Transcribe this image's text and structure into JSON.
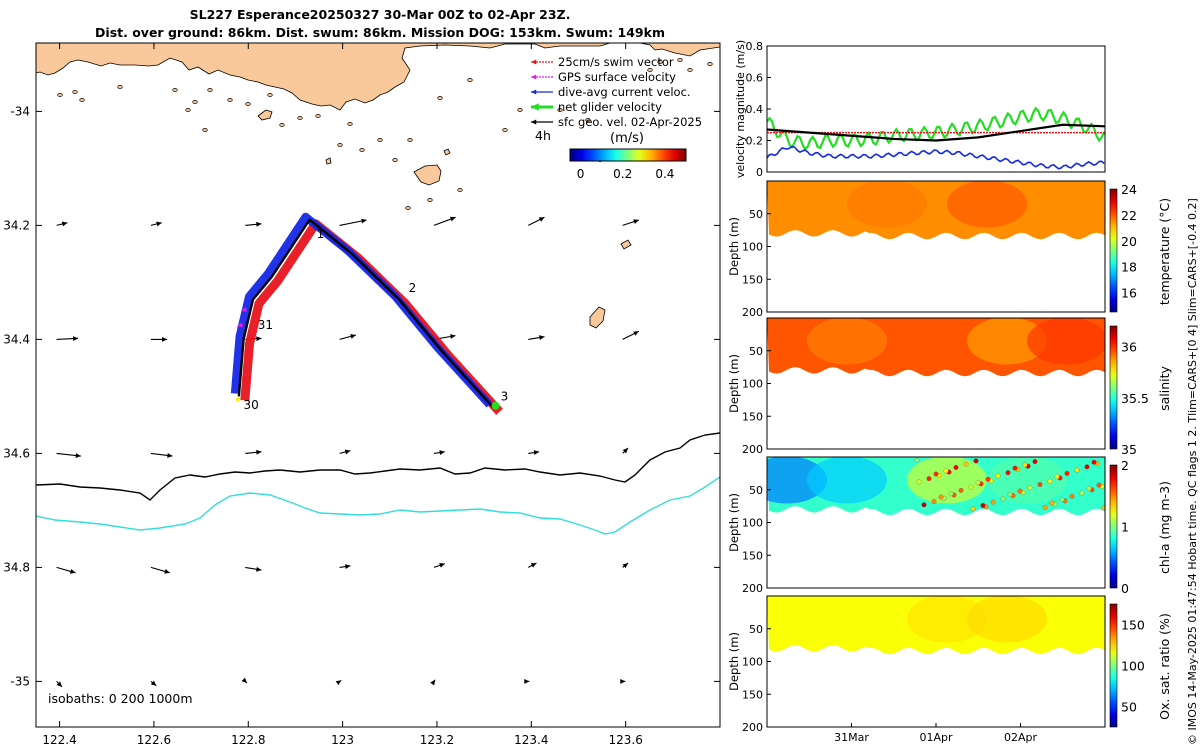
{
  "title_line1": "SL227 Esperance20250327 30-Mar 00Z to 02-Apr 23Z.",
  "title_line2": "Dist. over ground: 86km. Dist. swum: 86km. Mission DOG: 153km. Swum: 149km",
  "side_caption": "© IMOS 14-May-2025 01:47:54 Hobart time. QC flags 1  2. Tlim=CARS+[0 4] Slim=CARS+[-0.4 0.2]",
  "colors": {
    "land": "#f9c89b",
    "swim": "#e8141e",
    "gps": "#e61ee6",
    "current": "#1428e8",
    "net": "#22dd22",
    "geo": "#000000",
    "iso200": "#000000",
    "iso1000": "#33dddd"
  },
  "chart_data": [
    {
      "type": "map",
      "xlim": [
        122.35,
        123.8
      ],
      "ylim": [
        -35.08,
        -33.88
      ],
      "xticks": [
        122.4,
        122.6,
        122.8,
        123,
        123.2,
        123.4,
        123.6
      ],
      "xtick_labels": [
        "122.4",
        "122.6",
        "122.8",
        "123",
        "123.2",
        "123.4",
        "123.6"
      ],
      "yticks": [
        -34,
        -34.2,
        -34.4,
        -34.6,
        -34.8,
        -35
      ],
      "ytick_labels": [
        "-34",
        "34.2",
        "34.4",
        "34.6",
        "34.8",
        "-35"
      ],
      "legend": [
        {
          "label": "25cm/s swim vector",
          "color": "#e8141e",
          "style": "dotted-arrow"
        },
        {
          "label": "GPS surface velocity",
          "color": "#e61ee6",
          "style": "dotted-arrow"
        },
        {
          "label": "dive-avg current veloc.",
          "color": "#1428e8",
          "style": "arrow"
        },
        {
          "label": "net glider velocity",
          "color": "#22dd22",
          "style": "thick-arrow"
        },
        {
          "label": "sfc geo. vel. 02-Apr-2025",
          "color": "#000000",
          "style": "arrow"
        }
      ],
      "legend_position": "top-right",
      "time_step_label": "4h",
      "colorbar": {
        "title": "(m/s)",
        "ticks": [
          0,
          0.2,
          0.4
        ],
        "tick_labels": [
          "0",
          "0.2",
          "0.4"
        ],
        "range": [
          -0.05,
          0.5
        ]
      },
      "isobath_label": "isobaths: 0   200  1000m",
      "track": [
        {
          "lon": 122.78,
          "lat": -34.5
        },
        {
          "lon": 122.79,
          "lat": -34.4
        },
        {
          "lon": 122.81,
          "lat": -34.33
        },
        {
          "lon": 122.85,
          "lat": -34.29
        },
        {
          "lon": 122.93,
          "lat": -34.19
        },
        {
          "lon": 123.02,
          "lat": -34.25
        },
        {
          "lon": 123.12,
          "lat": -34.33
        },
        {
          "lon": 123.21,
          "lat": -34.42
        },
        {
          "lon": 123.32,
          "lat": -34.52
        }
      ],
      "day_labels": [
        {
          "label": "1",
          "lon": 122.945,
          "lat": -34.215
        },
        {
          "label": "2",
          "lon": 123.14,
          "lat": -34.31
        },
        {
          "label": "3",
          "lon": 123.335,
          "lat": -34.5
        },
        {
          "label": "31",
          "lon": 122.82,
          "lat": -34.375
        },
        {
          "label": "30",
          "lon": 122.79,
          "lat": -34.515
        }
      ],
      "geo_vectors": {
        "lons": [
          122.4,
          122.6,
          122.8,
          123.0,
          123.2,
          123.4,
          123.6
        ],
        "lats": [
          -34.2,
          -34.4,
          -34.6,
          -34.8,
          -35.0
        ],
        "u": [
          [
            0.02,
            0.02,
            0.03,
            0.05,
            0.04,
            0.03,
            0.03
          ],
          [
            0.04,
            0.03,
            0.03,
            0.03,
            0.04,
            0.03,
            0.03
          ],
          [
            0.045,
            0.04,
            0.03,
            0.02,
            0.02,
            0.02,
            0.01
          ],
          [
            0.035,
            0.035,
            0.03,
            0.02,
            0.02,
            0.015,
            0.01
          ],
          [
            0.01,
            0.01,
            0.003,
            0.003,
            0.002,
            0.002,
            0.005
          ]
        ],
        "v": [
          [
            0.005,
            0.005,
            0.003,
            0.01,
            0.015,
            0.015,
            0.01
          ],
          [
            0.002,
            0.0,
            0.002,
            0.008,
            0.007,
            0.005,
            0.015
          ],
          [
            -0.005,
            -0.005,
            0.003,
            0.005,
            0.003,
            0.003,
            0.01
          ],
          [
            -0.01,
            -0.01,
            -0.005,
            0.003,
            0.007,
            0.008,
            0.008
          ],
          [
            -0.01,
            -0.008,
            -0.003,
            0.002,
            0.003,
            0.0,
            0.0
          ]
        ]
      }
    },
    {
      "type": "line",
      "ylabel": "velocity magnitude (m/s)",
      "ylim": [
        0,
        0.8
      ],
      "yticks": [
        0,
        0.2,
        0.4,
        0.6,
        0.8
      ],
      "ytick_labels": [
        "0",
        "0.2",
        "0.4",
        "0.6",
        "0.8"
      ],
      "x_range_days": [
        0,
        4
      ],
      "series": [
        {
          "name": "net glider velocity",
          "color": "#22dd22",
          "x": [
            0,
            0.25,
            0.5,
            0.75,
            1.0,
            1.25,
            1.5,
            1.75,
            2.0,
            2.25,
            2.5,
            2.75,
            3.0,
            3.25,
            3.5,
            3.75,
            4.0
          ],
          "values": [
            0.32,
            0.2,
            0.18,
            0.2,
            0.2,
            0.21,
            0.23,
            0.24,
            0.25,
            0.27,
            0.29,
            0.32,
            0.35,
            0.37,
            0.34,
            0.29,
            0.22
          ]
        },
        {
          "name": "25cm/s swim vector",
          "color": "#e8141e",
          "x": [
            0,
            4
          ],
          "values": [
            0.25,
            0.25
          ]
        },
        {
          "name": "dive-avg current veloc.",
          "color": "#1428e8",
          "x": [
            0,
            0.25,
            0.5,
            0.75,
            1.0,
            1.25,
            1.5,
            1.75,
            2.0,
            2.25,
            2.5,
            2.75,
            3.0,
            3.25,
            3.5,
            3.75,
            4.0
          ],
          "values": [
            0.09,
            0.16,
            0.12,
            0.1,
            0.1,
            0.1,
            0.11,
            0.12,
            0.13,
            0.12,
            0.1,
            0.08,
            0.06,
            0.04,
            0.03,
            0.05,
            0.06
          ]
        },
        {
          "name": "sfc geo. vel.",
          "color": "#000000",
          "x": [
            0,
            0.5,
            1.0,
            1.5,
            2.0,
            2.5,
            3.0,
            3.5,
            4.0
          ],
          "values": [
            0.27,
            0.25,
            0.23,
            0.21,
            0.2,
            0.22,
            0.26,
            0.3,
            0.29
          ]
        }
      ]
    },
    {
      "type": "heatmap",
      "variable": "temperature",
      "ylabel": "Depth (m)",
      "colorbar_label": "temperature (°C)",
      "clim": [
        14.5,
        24
      ],
      "colorbar_ticks": [
        16,
        18,
        20,
        22,
        24
      ],
      "ylim": [
        0,
        200
      ],
      "yticks": [
        50,
        100,
        150,
        200
      ],
      "ytick_labels": [
        "50",
        "100",
        "150",
        "200"
      ],
      "max_depth_m": 90,
      "typical_value": 21.5
    },
    {
      "type": "heatmap",
      "variable": "salinity",
      "ylabel": "Depth (m)",
      "colorbar_label": "salinity",
      "clim": [
        35,
        36.2
      ],
      "colorbar_ticks": [
        35,
        35.5,
        36
      ],
      "colorbar_tick_labels": [
        "35",
        "35.5",
        "36"
      ],
      "ylim": [
        0,
        200
      ],
      "yticks": [
        50,
        100,
        150,
        200
      ],
      "ytick_labels": [
        "50",
        "100",
        "150",
        "200"
      ],
      "max_depth_m": 90,
      "typical_value": 35.95
    },
    {
      "type": "heatmap",
      "variable": "chl-a",
      "ylabel": "Depth (m)",
      "colorbar_label": "chl-a (mg m-3)",
      "clim": [
        0,
        2
      ],
      "colorbar_ticks": [
        0,
        1,
        2
      ],
      "ylim": [
        0,
        200
      ],
      "yticks": [
        50,
        100,
        150,
        200
      ],
      "ytick_labels": [
        "50",
        "100",
        "150",
        "200"
      ],
      "max_depth_m": 90,
      "typical_value": 0.85
    },
    {
      "type": "heatmap",
      "variable": "oxygen",
      "ylabel": "Depth (m)",
      "colorbar_label": "Ox. sat. ratio (%)",
      "clim": [
        25,
        175
      ],
      "colorbar_ticks": [
        50,
        100,
        150
      ],
      "ylim": [
        0,
        200
      ],
      "yticks": [
        50,
        100,
        150,
        200
      ],
      "ytick_labels": [
        "50",
        "100",
        "150",
        "200"
      ],
      "x_tick_labels": [
        "31Mar",
        "01Apr",
        "02Apr"
      ],
      "x_tick_days": [
        1,
        2,
        3
      ],
      "max_depth_m": 90,
      "typical_value": 118
    }
  ]
}
